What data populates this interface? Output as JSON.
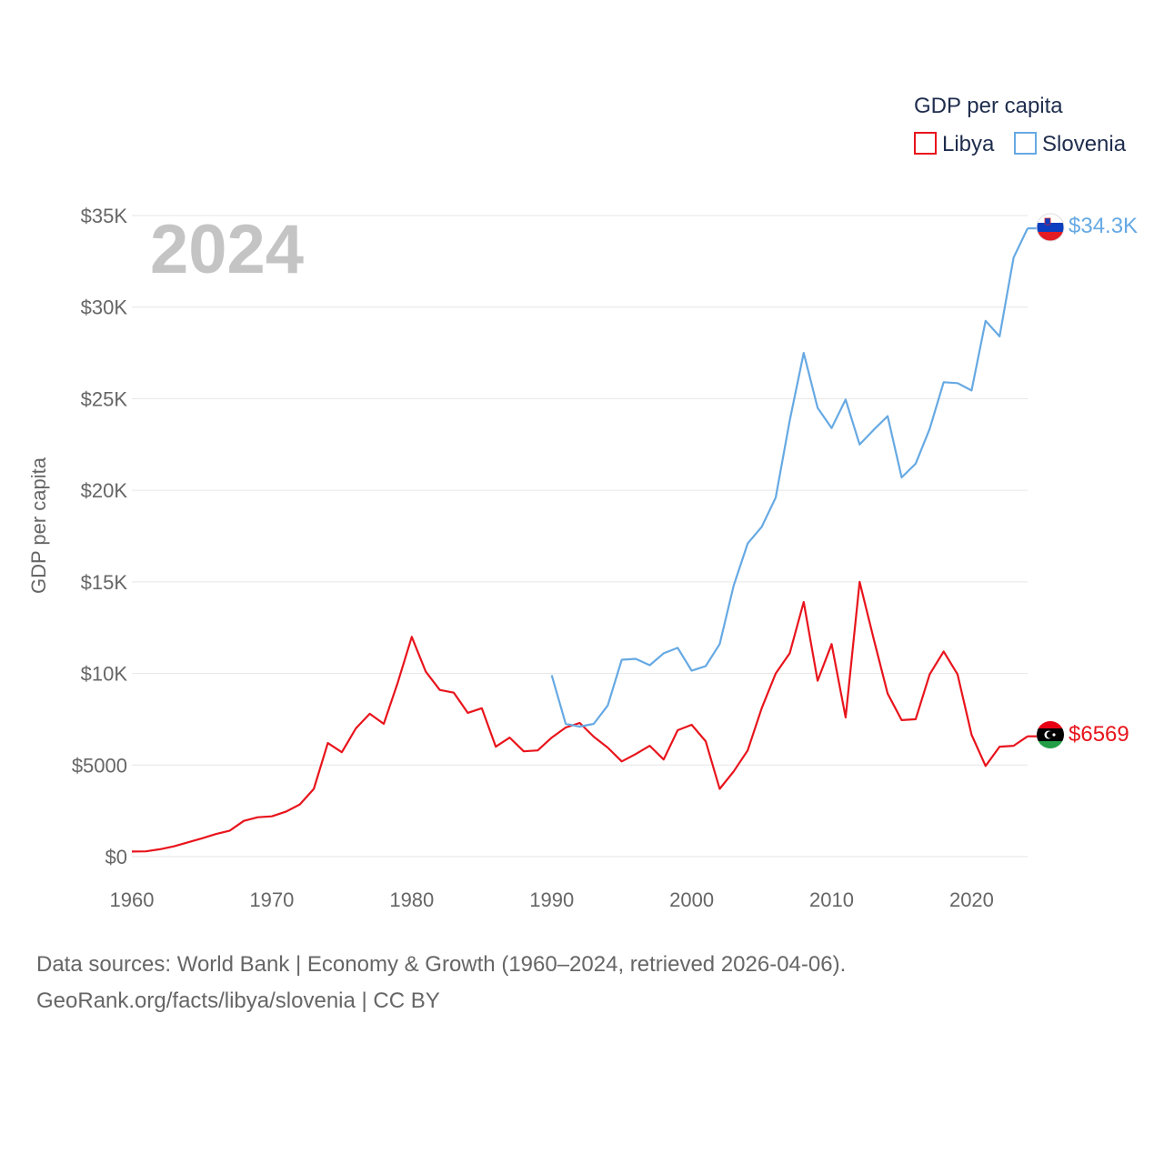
{
  "chart_data": {
    "type": "line",
    "year_watermark": "2024",
    "legend_title": "GDP per capita",
    "ylabel": "GDP per capita",
    "xlabel": "",
    "xlim": [
      1960,
      2024
    ],
    "ylim": [
      0,
      35000
    ],
    "x_ticks": [
      1960,
      1970,
      1980,
      1990,
      2000,
      2010,
      2020
    ],
    "x_tick_labels": [
      "1960",
      "1970",
      "1980",
      "1990",
      "2000",
      "2010",
      "2020"
    ],
    "y_ticks": [
      0,
      5000,
      10000,
      15000,
      20000,
      25000,
      30000,
      35000
    ],
    "y_tick_labels": [
      "$0",
      "$5000",
      "$10K",
      "$15K",
      "$20K",
      "$25K",
      "$30K",
      "$35K"
    ],
    "series": [
      {
        "name": "Libya",
        "color": "#e8141c",
        "flag": "libya-flag",
        "end_label": "$6569",
        "points": [
          [
            1960,
            280
          ],
          [
            1961,
            290
          ],
          [
            1962,
            400
          ],
          [
            1963,
            560
          ],
          [
            1964,
            780
          ],
          [
            1965,
            1000
          ],
          [
            1966,
            1230
          ],
          [
            1967,
            1420
          ],
          [
            1968,
            1950
          ],
          [
            1969,
            2150
          ],
          [
            1970,
            2200
          ],
          [
            1971,
            2450
          ],
          [
            1972,
            2850
          ],
          [
            1973,
            3700
          ],
          [
            1974,
            6200
          ],
          [
            1975,
            5700
          ],
          [
            1976,
            7000
          ],
          [
            1977,
            7800
          ],
          [
            1978,
            7250
          ],
          [
            1979,
            9500
          ],
          [
            1980,
            12000
          ],
          [
            1981,
            10100
          ],
          [
            1982,
            9100
          ],
          [
            1983,
            8950
          ],
          [
            1984,
            7850
          ],
          [
            1985,
            8100
          ],
          [
            1986,
            6000
          ],
          [
            1987,
            6500
          ],
          [
            1988,
            5750
          ],
          [
            1989,
            5800
          ],
          [
            1990,
            6500
          ],
          [
            1991,
            7050
          ],
          [
            1992,
            7300
          ],
          [
            1993,
            6550
          ],
          [
            1994,
            5950
          ],
          [
            1995,
            5200
          ],
          [
            1996,
            5600
          ],
          [
            1997,
            6050
          ],
          [
            1998,
            5300
          ],
          [
            1999,
            6900
          ],
          [
            2000,
            7200
          ],
          [
            2001,
            6300
          ],
          [
            2002,
            3700
          ],
          [
            2003,
            4650
          ],
          [
            2004,
            5800
          ],
          [
            2005,
            8100
          ],
          [
            2006,
            10000
          ],
          [
            2007,
            11100
          ],
          [
            2008,
            13900
          ],
          [
            2009,
            9600
          ],
          [
            2010,
            11600
          ],
          [
            2011,
            7600
          ],
          [
            2012,
            15000
          ],
          [
            2013,
            11900
          ],
          [
            2014,
            8900
          ],
          [
            2015,
            7450
          ],
          [
            2016,
            7500
          ],
          [
            2017,
            9950
          ],
          [
            2018,
            11200
          ],
          [
            2019,
            9950
          ],
          [
            2020,
            6650
          ],
          [
            2021,
            4950
          ],
          [
            2022,
            6000
          ],
          [
            2023,
            6050
          ],
          [
            2024,
            6569
          ]
        ]
      },
      {
        "name": "Slovenia",
        "color": "#66a9e3",
        "flag": "slovenia-flag",
        "end_label": "$34.3K",
        "points": [
          [
            1990,
            9900
          ],
          [
            1991,
            7250
          ],
          [
            1992,
            7100
          ],
          [
            1993,
            7250
          ],
          [
            1994,
            8250
          ],
          [
            1995,
            10750
          ],
          [
            1996,
            10800
          ],
          [
            1997,
            10450
          ],
          [
            1998,
            11100
          ],
          [
            1999,
            11400
          ],
          [
            2000,
            10150
          ],
          [
            2001,
            10400
          ],
          [
            2002,
            11600
          ],
          [
            2003,
            14800
          ],
          [
            2004,
            17100
          ],
          [
            2005,
            18000
          ],
          [
            2006,
            19600
          ],
          [
            2007,
            23800
          ],
          [
            2008,
            27500
          ],
          [
            2009,
            24500
          ],
          [
            2010,
            23400
          ],
          [
            2011,
            24950
          ],
          [
            2012,
            22500
          ],
          [
            2013,
            23300
          ],
          [
            2014,
            24050
          ],
          [
            2015,
            20700
          ],
          [
            2016,
            21450
          ],
          [
            2017,
            23350
          ],
          [
            2018,
            25900
          ],
          [
            2019,
            25850
          ],
          [
            2020,
            25450
          ],
          [
            2021,
            29250
          ],
          [
            2022,
            28400
          ],
          [
            2023,
            32700
          ],
          [
            2024,
            34300
          ]
        ]
      }
    ]
  },
  "source": {
    "line1": "Data sources: World Bank | Economy & Growth (1960–2024, retrieved 2026-04-06).",
    "line2": "GeoRank.org/facts/libya/slovenia | CC BY"
  }
}
